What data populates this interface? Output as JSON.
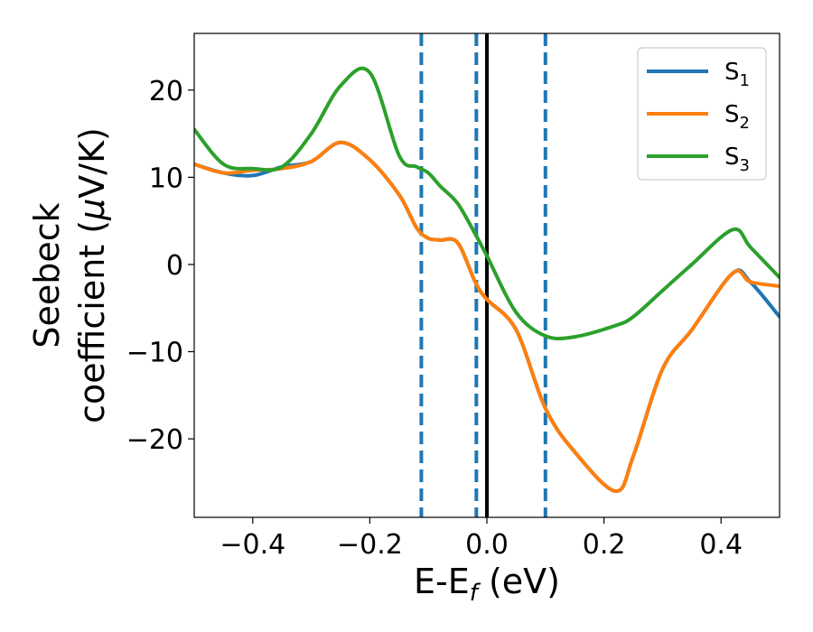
{
  "chart_data": {
    "type": "line",
    "title": "",
    "xlabel": "E-E",
    "xlabel_sub": "f",
    "xlabel_unit": " (eV)",
    "ylabel_line1": "Seebeck",
    "ylabel_line2": "coefficient  (",
    "ylabel_mu": "μ",
    "ylabel_unit": "V/K)",
    "xlim": [
      -0.5,
      0.5
    ],
    "ylim": [
      -29,
      26.5
    ],
    "xticks": [
      -0.4,
      -0.2,
      0.0,
      0.2,
      0.4
    ],
    "xtick_labels": [
      "−0.4",
      "−0.2",
      "0.0",
      "0.2",
      "0.4"
    ],
    "yticks": [
      20,
      10,
      0,
      -10,
      -20
    ],
    "ytick_labels": [
      "20",
      "10",
      "0",
      "−10",
      "−20"
    ],
    "grid": false,
    "legend_position": "top-right",
    "vlines": [
      {
        "x": -0.112,
        "style": "dashed",
        "color": "#1f77b4"
      },
      {
        "x": -0.018,
        "style": "dashed",
        "color": "#1f77b4"
      },
      {
        "x": 0.0,
        "style": "solid",
        "color": "#000000"
      },
      {
        "x": 0.1,
        "style": "dashed",
        "color": "#1f77b4"
      }
    ],
    "x": [
      -0.5,
      -0.45,
      -0.4,
      -0.35,
      -0.3,
      -0.25,
      -0.2,
      -0.15,
      -0.12,
      -0.1,
      -0.08,
      -0.05,
      -0.02,
      0.0,
      0.05,
      0.1,
      0.15,
      0.22,
      0.25,
      0.3,
      0.35,
      0.42,
      0.45,
      0.5
    ],
    "series": [
      {
        "name": "S",
        "sub": "1",
        "color": "#1f77b4",
        "values": [
          11.5,
          10.5,
          10.2,
          11.2,
          11.8,
          14.0,
          12.0,
          8.0,
          4.2,
          3.0,
          2.8,
          2.5,
          -2.0,
          -4.0,
          -7.5,
          -16.5,
          -21.5,
          -26.0,
          -22.0,
          -12.0,
          -7.5,
          -1.0,
          -2.0,
          -6.0
        ]
      },
      {
        "name": "S",
        "sub": "2",
        "color": "#ff7f0e",
        "values": [
          11.5,
          10.5,
          10.8,
          11.0,
          11.8,
          14.0,
          12.0,
          8.0,
          4.2,
          3.0,
          2.8,
          2.5,
          -2.0,
          -4.0,
          -7.5,
          -16.5,
          -21.5,
          -26.0,
          -22.0,
          -12.0,
          -7.5,
          -1.0,
          -2.0,
          -2.5
        ]
      },
      {
        "name": "S",
        "sub": "3",
        "color": "#2ca02c",
        "values": [
          15.5,
          11.5,
          11.0,
          11.2,
          15.0,
          20.5,
          22.0,
          12.5,
          11.2,
          10.5,
          9.0,
          7.0,
          3.5,
          1.0,
          -5.5,
          -8.2,
          -8.3,
          -7.0,
          -6.0,
          -3.0,
          0.0,
          4.0,
          2.0,
          -1.5
        ]
      }
    ]
  }
}
